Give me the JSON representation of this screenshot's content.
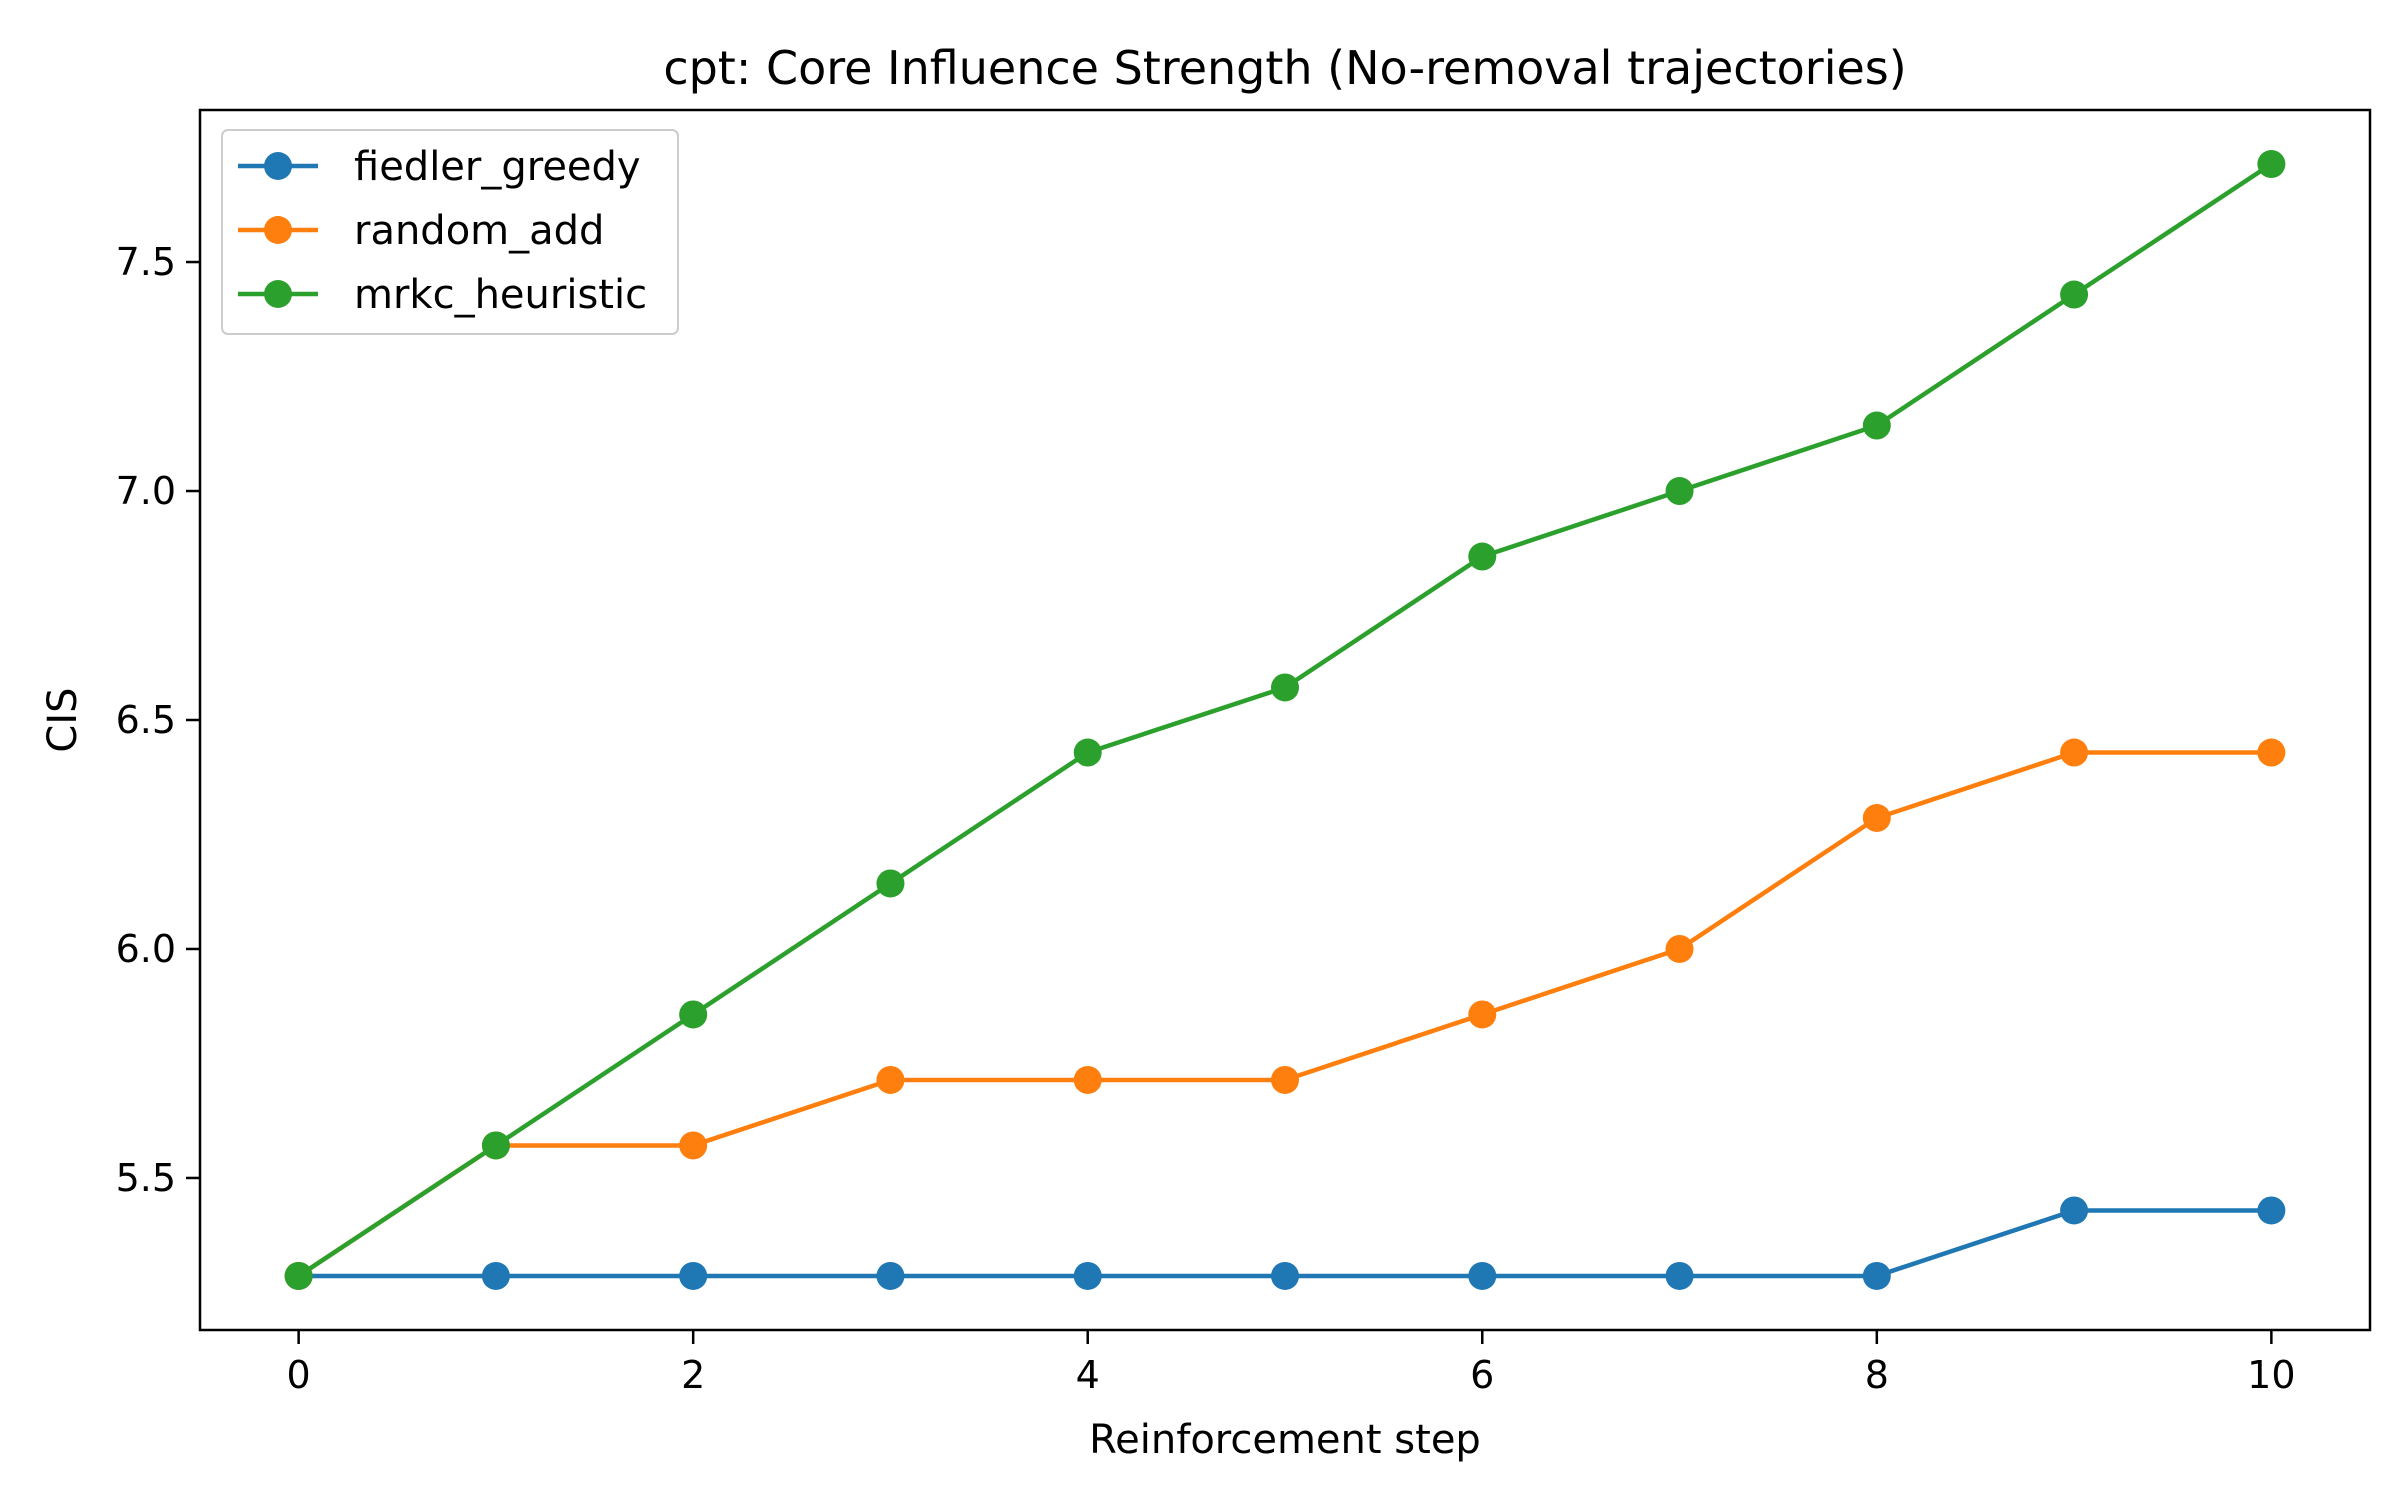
{
  "chart_data": {
    "type": "line",
    "title": "cpt: Core Influence Strength (No-removal trajectories)",
    "xlabel": "Reinforcement step",
    "ylabel": "CIS",
    "x": [
      0,
      1,
      2,
      3,
      4,
      5,
      6,
      7,
      8,
      9,
      10
    ],
    "xlim": [
      -0.5,
      10.5
    ],
    "ylim": [
      5.168,
      7.832
    ],
    "xticks": [
      0,
      2,
      4,
      6,
      8,
      10
    ],
    "xtick_labels": [
      "0",
      "2",
      "4",
      "6",
      "8",
      "10"
    ],
    "yticks": [
      5.5,
      6.0,
      6.5,
      7.0,
      7.5
    ],
    "ytick_labels": [
      "5.5",
      "6.0",
      "6.5",
      "7.0",
      "7.5"
    ],
    "grid": false,
    "legend_position": "top-left",
    "series": [
      {
        "name": "fiedler_greedy",
        "color": "#1f77b4",
        "values": [
          5.286,
          5.286,
          5.286,
          5.286,
          5.286,
          5.286,
          5.286,
          5.286,
          5.286,
          5.429,
          5.429
        ]
      },
      {
        "name": "random_add",
        "color": "#ff7f0e",
        "values": [
          5.286,
          5.571,
          5.571,
          5.714,
          5.714,
          5.714,
          5.857,
          6.0,
          6.286,
          6.429,
          6.429
        ]
      },
      {
        "name": "mrkc_heuristic",
        "color": "#2ca02c",
        "values": [
          5.286,
          5.571,
          5.857,
          6.143,
          6.429,
          6.571,
          6.857,
          7.0,
          7.143,
          7.429,
          7.714
        ]
      }
    ]
  }
}
